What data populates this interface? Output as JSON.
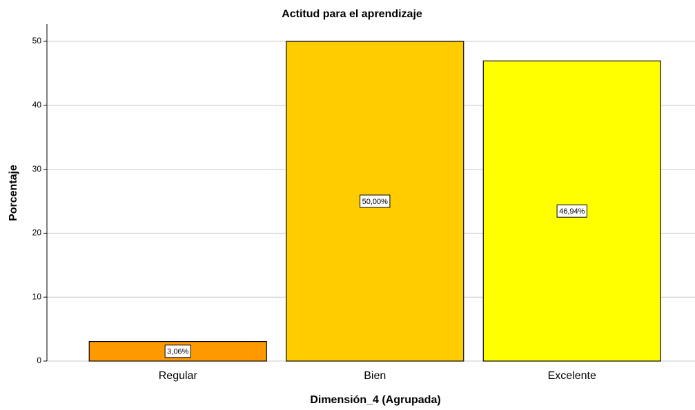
{
  "chart_data": {
    "type": "bar",
    "title": "Actitud para el aprendizaje",
    "x_label": "Dimensión_4 (Agrupada)",
    "y_label": "Porcentaje",
    "categories": [
      "Regular",
      "Bien",
      "Excelente"
    ],
    "values": [
      3.06,
      50.0,
      46.94
    ],
    "value_labels": [
      "3,06%",
      "50,00%",
      "46,94%"
    ],
    "colors": [
      "#ff9900",
      "#ffcc00",
      "#ffff00"
    ],
    "ylim": [
      0,
      52.7
    ],
    "yticks": [
      0,
      10,
      20,
      30,
      40,
      50
    ],
    "grid": true
  }
}
